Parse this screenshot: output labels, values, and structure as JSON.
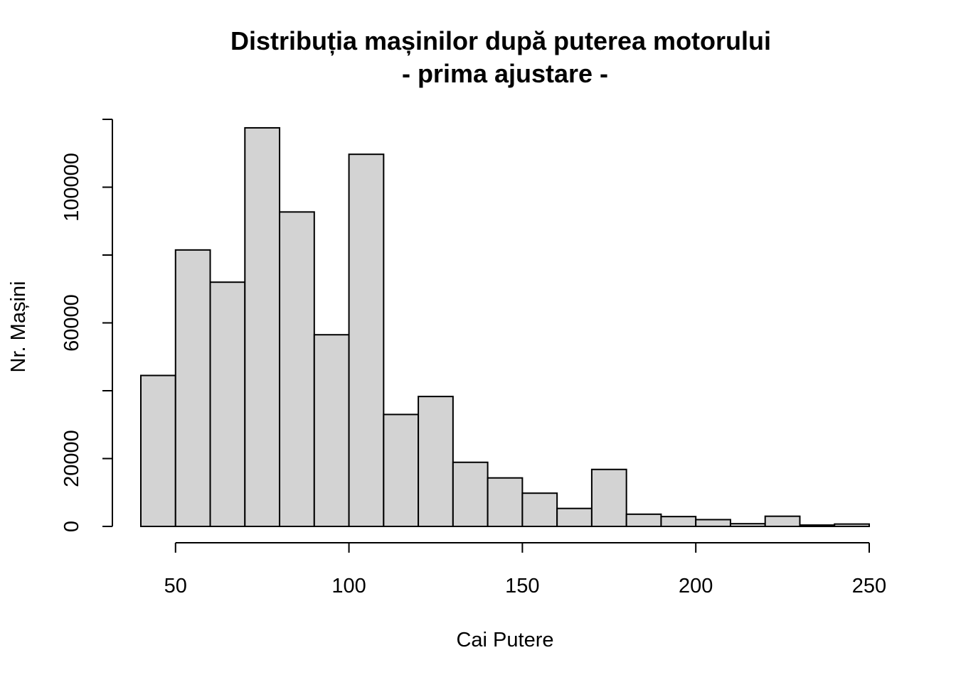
{
  "chart_data": {
    "type": "bar",
    "title": [
      "Distribuția mașinilor după puterea motorului",
      "- prima ajustare -"
    ],
    "xlabel": "Cai Putere",
    "ylabel": "Nr. Mașini",
    "xlim": [
      40,
      250
    ],
    "ylim": [
      0,
      120000
    ],
    "x_ticks": [
      50,
      100,
      150,
      200,
      250
    ],
    "y_ticks": [
      0,
      20000,
      60000,
      100000
    ],
    "y_tick_labels": [
      "0",
      "20000",
      "60000",
      "100000"
    ],
    "bins": [
      {
        "x0": 40,
        "x1": 50,
        "count": 44500
      },
      {
        "x0": 50,
        "x1": 60,
        "count": 81500
      },
      {
        "x0": 60,
        "x1": 70,
        "count": 72000
      },
      {
        "x0": 70,
        "x1": 80,
        "count": 117500
      },
      {
        "x0": 80,
        "x1": 90,
        "count": 92700
      },
      {
        "x0": 90,
        "x1": 100,
        "count": 56500
      },
      {
        "x0": 100,
        "x1": 110,
        "count": 109700
      },
      {
        "x0": 110,
        "x1": 120,
        "count": 33000
      },
      {
        "x0": 120,
        "x1": 130,
        "count": 38300
      },
      {
        "x0": 130,
        "x1": 140,
        "count": 18900
      },
      {
        "x0": 140,
        "x1": 150,
        "count": 14300
      },
      {
        "x0": 150,
        "x1": 160,
        "count": 9800
      },
      {
        "x0": 160,
        "x1": 170,
        "count": 5300
      },
      {
        "x0": 170,
        "x1": 180,
        "count": 16800
      },
      {
        "x0": 180,
        "x1": 190,
        "count": 3600
      },
      {
        "x0": 190,
        "x1": 200,
        "count": 2900
      },
      {
        "x0": 200,
        "x1": 210,
        "count": 2000
      },
      {
        "x0": 210,
        "x1": 220,
        "count": 800
      },
      {
        "x0": 220,
        "x1": 230,
        "count": 3000
      },
      {
        "x0": 230,
        "x1": 240,
        "count": 400
      },
      {
        "x0": 240,
        "x1": 250,
        "count": 700
      }
    ],
    "bar_fill": "#d3d3d3",
    "bar_stroke": "#000000",
    "grid": false,
    "legend": "none"
  }
}
